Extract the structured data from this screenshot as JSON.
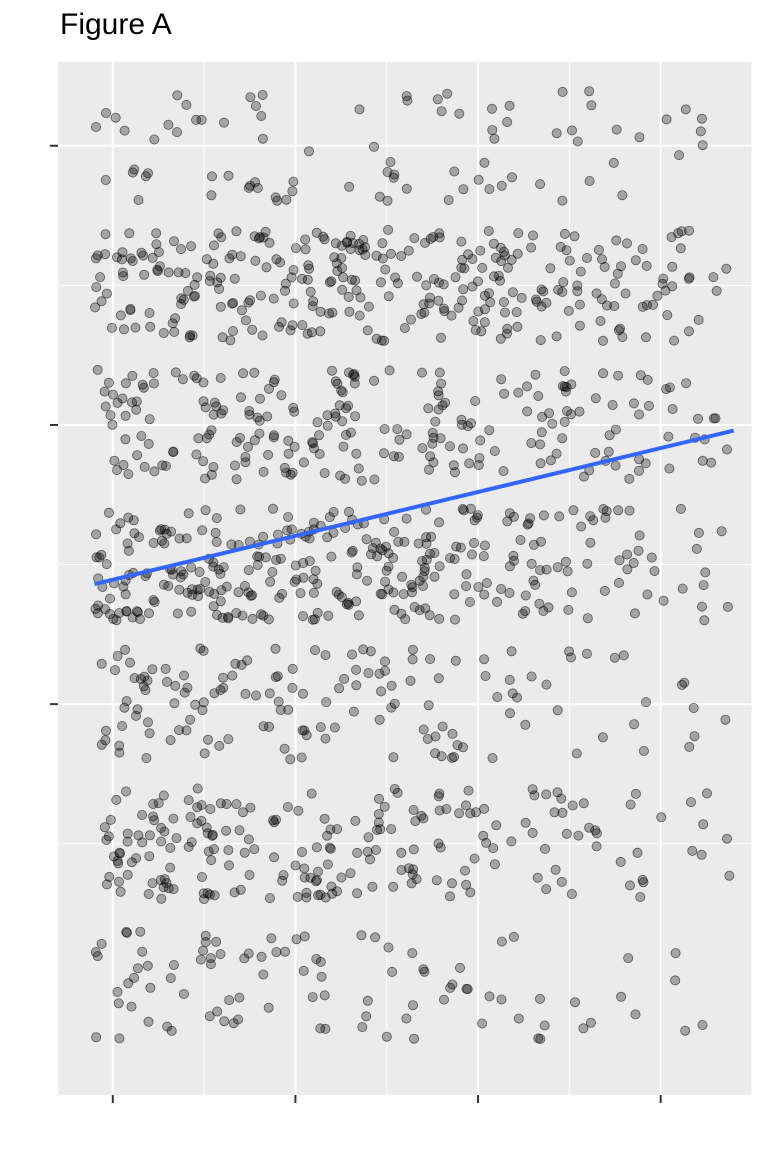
{
  "chart_data": {
    "type": "scatter",
    "title": "Figure A",
    "xlabel": "",
    "ylabel": "",
    "xlim": [
      -0.3,
      3.5
    ],
    "ylim": [
      -1.4,
      2.3
    ],
    "x_ticks": [
      0,
      1,
      2,
      3
    ],
    "y_ticks": [
      0,
      1,
      2
    ],
    "tick_labels_visible": false,
    "grid": true,
    "background": "#ebebeb",
    "point_color": "#000000",
    "point_opacity": 0.3,
    "trend_line_color": "#3366ff",
    "jitter": true,
    "bands": [
      {
        "y": -1,
        "x_counts": [
          22,
          18,
          16,
          12,
          10,
          8,
          6,
          4
        ]
      },
      {
        "y": -0.5,
        "x_counts": [
          45,
          38,
          34,
          30,
          26,
          20,
          14,
          8
        ]
      },
      {
        "y": 0,
        "x_counts": [
          28,
          26,
          24,
          22,
          18,
          12,
          8,
          6
        ]
      },
      {
        "y": 0.5,
        "x_counts": [
          55,
          52,
          50,
          48,
          44,
          34,
          22,
          12
        ]
      },
      {
        "y": 1,
        "x_counts": [
          34,
          34,
          34,
          34,
          32,
          28,
          22,
          14
        ]
      },
      {
        "y": 1.5,
        "x_counts": [
          40,
          42,
          44,
          46,
          46,
          40,
          32,
          20
        ]
      },
      {
        "y": 2,
        "x_counts": [
          12,
          12,
          12,
          12,
          12,
          10,
          8,
          6
        ]
      }
    ],
    "trend_line": {
      "x": [
        -0.1,
        3.4
      ],
      "y": [
        0.43,
        0.98
      ]
    }
  }
}
